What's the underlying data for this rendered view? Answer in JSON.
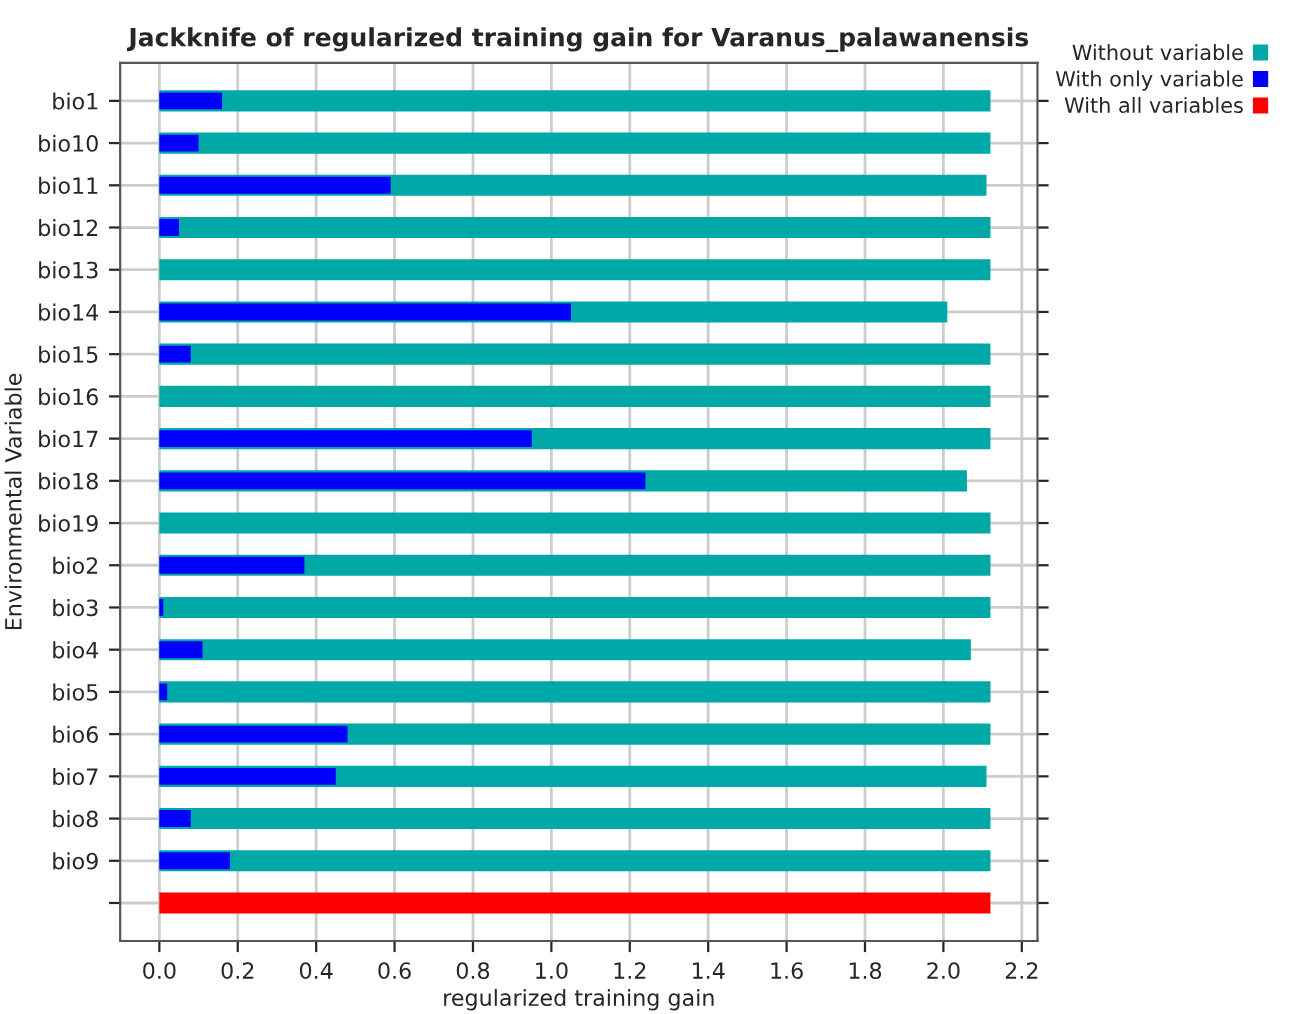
{
  "chart_data": {
    "type": "bar",
    "orientation": "horizontal",
    "title": "Jackknife of regularized training gain for Varanus_palawanensis",
    "xlabel": "regularized training gain",
    "ylabel": "Environmental Variable",
    "categories": [
      "bio1",
      "bio10",
      "bio11",
      "bio12",
      "bio13",
      "bio14",
      "bio15",
      "bio16",
      "bio17",
      "bio18",
      "bio19",
      "bio2",
      "bio3",
      "bio4",
      "bio5",
      "bio6",
      "bio7",
      "bio8",
      "bio9",
      null
    ],
    "series": [
      {
        "name": "Without variable",
        "color": "#00a8a8",
        "values": [
          2.12,
          2.12,
          2.11,
          2.12,
          2.12,
          2.01,
          2.12,
          2.12,
          2.12,
          2.06,
          2.12,
          2.12,
          2.12,
          2.07,
          2.12,
          2.12,
          2.11,
          2.12,
          2.12,
          null
        ]
      },
      {
        "name": "With only variable",
        "color": "#0000ff",
        "values": [
          0.16,
          0.1,
          0.59,
          0.05,
          0.0,
          1.05,
          0.08,
          0.0,
          0.95,
          1.24,
          0.0,
          0.37,
          0.01,
          0.11,
          0.02,
          0.48,
          0.45,
          0.08,
          0.18,
          null
        ]
      },
      {
        "name": "With all variables",
        "color": "#ff0000",
        "values": [
          null,
          null,
          null,
          null,
          null,
          null,
          null,
          null,
          null,
          null,
          null,
          null,
          null,
          null,
          null,
          null,
          null,
          null,
          null,
          2.12
        ]
      }
    ],
    "xlim": [
      -0.1,
      2.24
    ],
    "xticks": [
      {
        "value": 0,
        "label": "0.0"
      },
      0.2,
      0.4,
      0.6,
      0.8,
      {
        "value": 1,
        "label": "1.0"
      },
      1.2,
      1.4,
      1.6,
      1.8,
      {
        "value": 2,
        "label": "2.0"
      },
      2.2
    ],
    "grid": true,
    "legend": "top right"
  }
}
